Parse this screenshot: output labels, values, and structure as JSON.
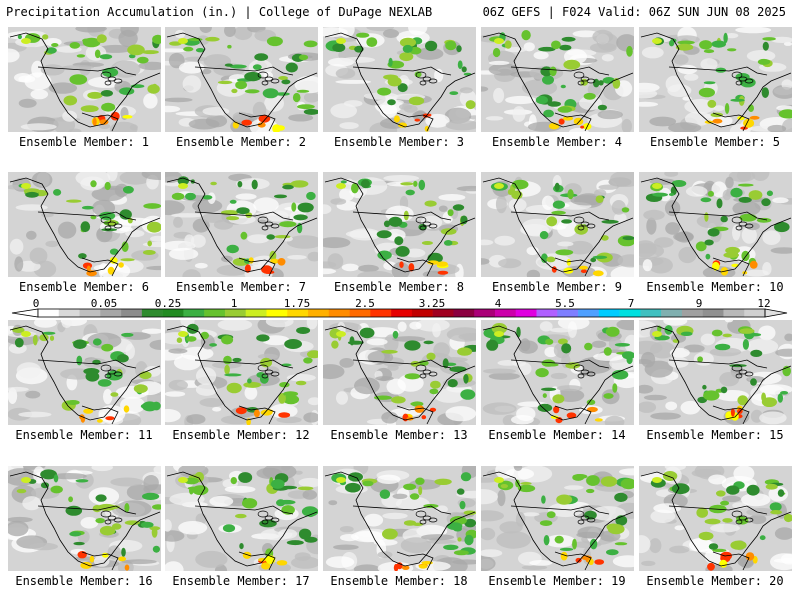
{
  "header": {
    "title_left": "Precipitation Accumulation (in.) | College of DuPage NEXLAB",
    "title_right": "06Z GEFS | F024 Valid: 06Z SUN JUN 08 2025"
  },
  "panel_label_prefix": "Ensemble Member: ",
  "members": [
    1,
    2,
    3,
    4,
    5,
    6,
    7,
    8,
    9,
    10,
    11,
    12,
    13,
    14,
    15,
    16,
    17,
    18,
    19,
    20
  ],
  "colorbar": {
    "tick_labels": [
      "0",
      "0.05",
      "0.25",
      "1",
      "1.75",
      "2.5",
      "3.25",
      "4",
      "5.5",
      "7",
      "9",
      "12"
    ],
    "colors": [
      "#ffffff",
      "#d9d9d9",
      "#bfbfbf",
      "#a6a6a6",
      "#8c8c8c",
      "#2e8b2e",
      "#228b22",
      "#3cb043",
      "#66c22e",
      "#99cc33",
      "#ccee22",
      "#ffff00",
      "#ffd700",
      "#ffb000",
      "#ff8c00",
      "#ff6a00",
      "#ff3300",
      "#e60000",
      "#c00000",
      "#a00020",
      "#8b0040",
      "#aa0077",
      "#cc00aa",
      "#e000e0",
      "#b060ff",
      "#7f7fff",
      "#4fa0ff",
      "#00ccff",
      "#00e0e0",
      "#40c0c0",
      "#80b0b0",
      "#a0a0a0",
      "#909090",
      "#b8b8b8",
      "#d0d0d0"
    ]
  }
}
